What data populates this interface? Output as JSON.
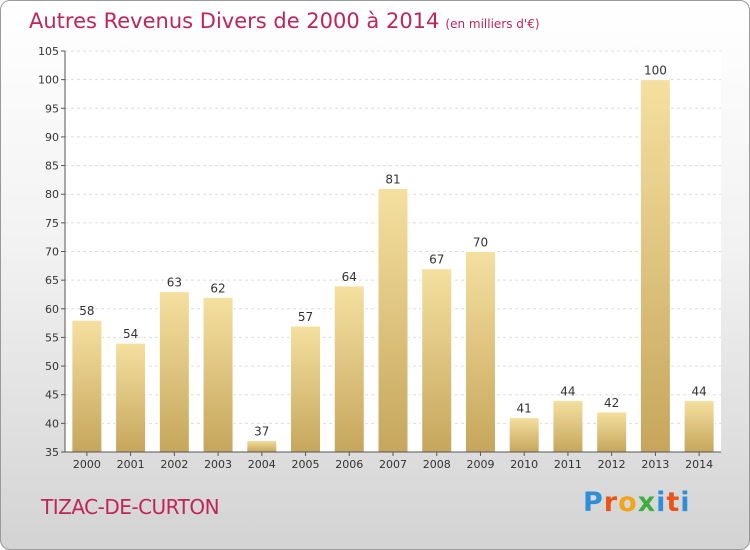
{
  "title": "Autres Revenus Divers de 2000 à 2014",
  "subtitle": "(en milliers d'€)",
  "town": "TIZAC-DE-CURTON",
  "logo": {
    "text": "Proxiti",
    "letters": [
      "P",
      "r",
      "o",
      "x",
      "i",
      "t",
      "i"
    ],
    "colors": [
      "#2e8fd8",
      "#e8541a",
      "#f2a51c",
      "#3fae3f",
      "#2e8fd8",
      "#e8541a",
      "#2e8fd8"
    ]
  },
  "colors": {
    "title": "#c0245a",
    "bar_light": "#f5e0a0",
    "bar_dark": "#c6a65c"
  },
  "chart_data": {
    "type": "bar",
    "title": "Autres Revenus Divers de 2000 à 2014",
    "subtitle": "(en milliers d'€)",
    "categories": [
      "2000",
      "2001",
      "2002",
      "2003",
      "2004",
      "2005",
      "2006",
      "2007",
      "2008",
      "2009",
      "2010",
      "2011",
      "2012",
      "2013",
      "2014"
    ],
    "values": [
      58,
      54,
      63,
      62,
      37,
      57,
      64,
      81,
      67,
      70,
      41,
      44,
      42,
      100,
      44
    ],
    "ylim": [
      35,
      105
    ],
    "yticks": [
      35,
      40,
      45,
      50,
      55,
      60,
      65,
      70,
      75,
      80,
      85,
      90,
      95,
      100,
      105
    ],
    "grid": true,
    "xlabel": "",
    "ylabel": ""
  }
}
